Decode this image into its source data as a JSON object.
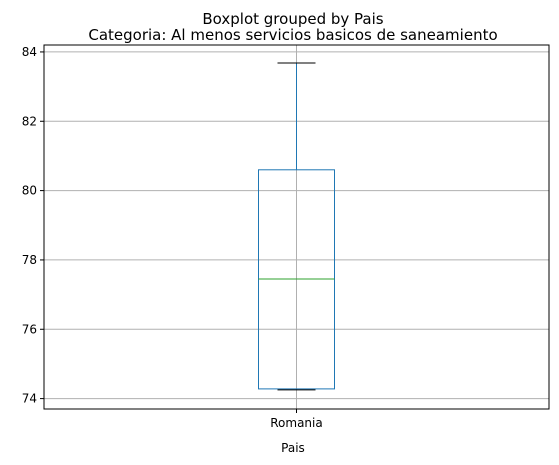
{
  "chart_data": {
    "type": "box",
    "suptitle": "Boxplot grouped by Pais",
    "title": "Categoria: Al menos servicios basicos de saneamiento",
    "xlabel": "Pais",
    "ylabel": "",
    "categories": [
      "Romania"
    ],
    "boxes": [
      {
        "category": "Romania",
        "whisker_low": 74.25,
        "q1": 74.28,
        "median": 77.45,
        "q3": 80.6,
        "whisker_high": 83.68
      }
    ],
    "ylim": [
      73.7,
      84.2
    ],
    "yticks": [
      74,
      76,
      78,
      80,
      82,
      84
    ],
    "ytick_labels": [
      "74",
      "76",
      "78",
      "80",
      "82",
      "84"
    ],
    "grid": true,
    "colors": {
      "box": "#1f77b4",
      "median": "#2ca02c",
      "cap": "#000000",
      "grid": "#b0b0b0",
      "axis": "#000000",
      "text": "#000000"
    }
  }
}
